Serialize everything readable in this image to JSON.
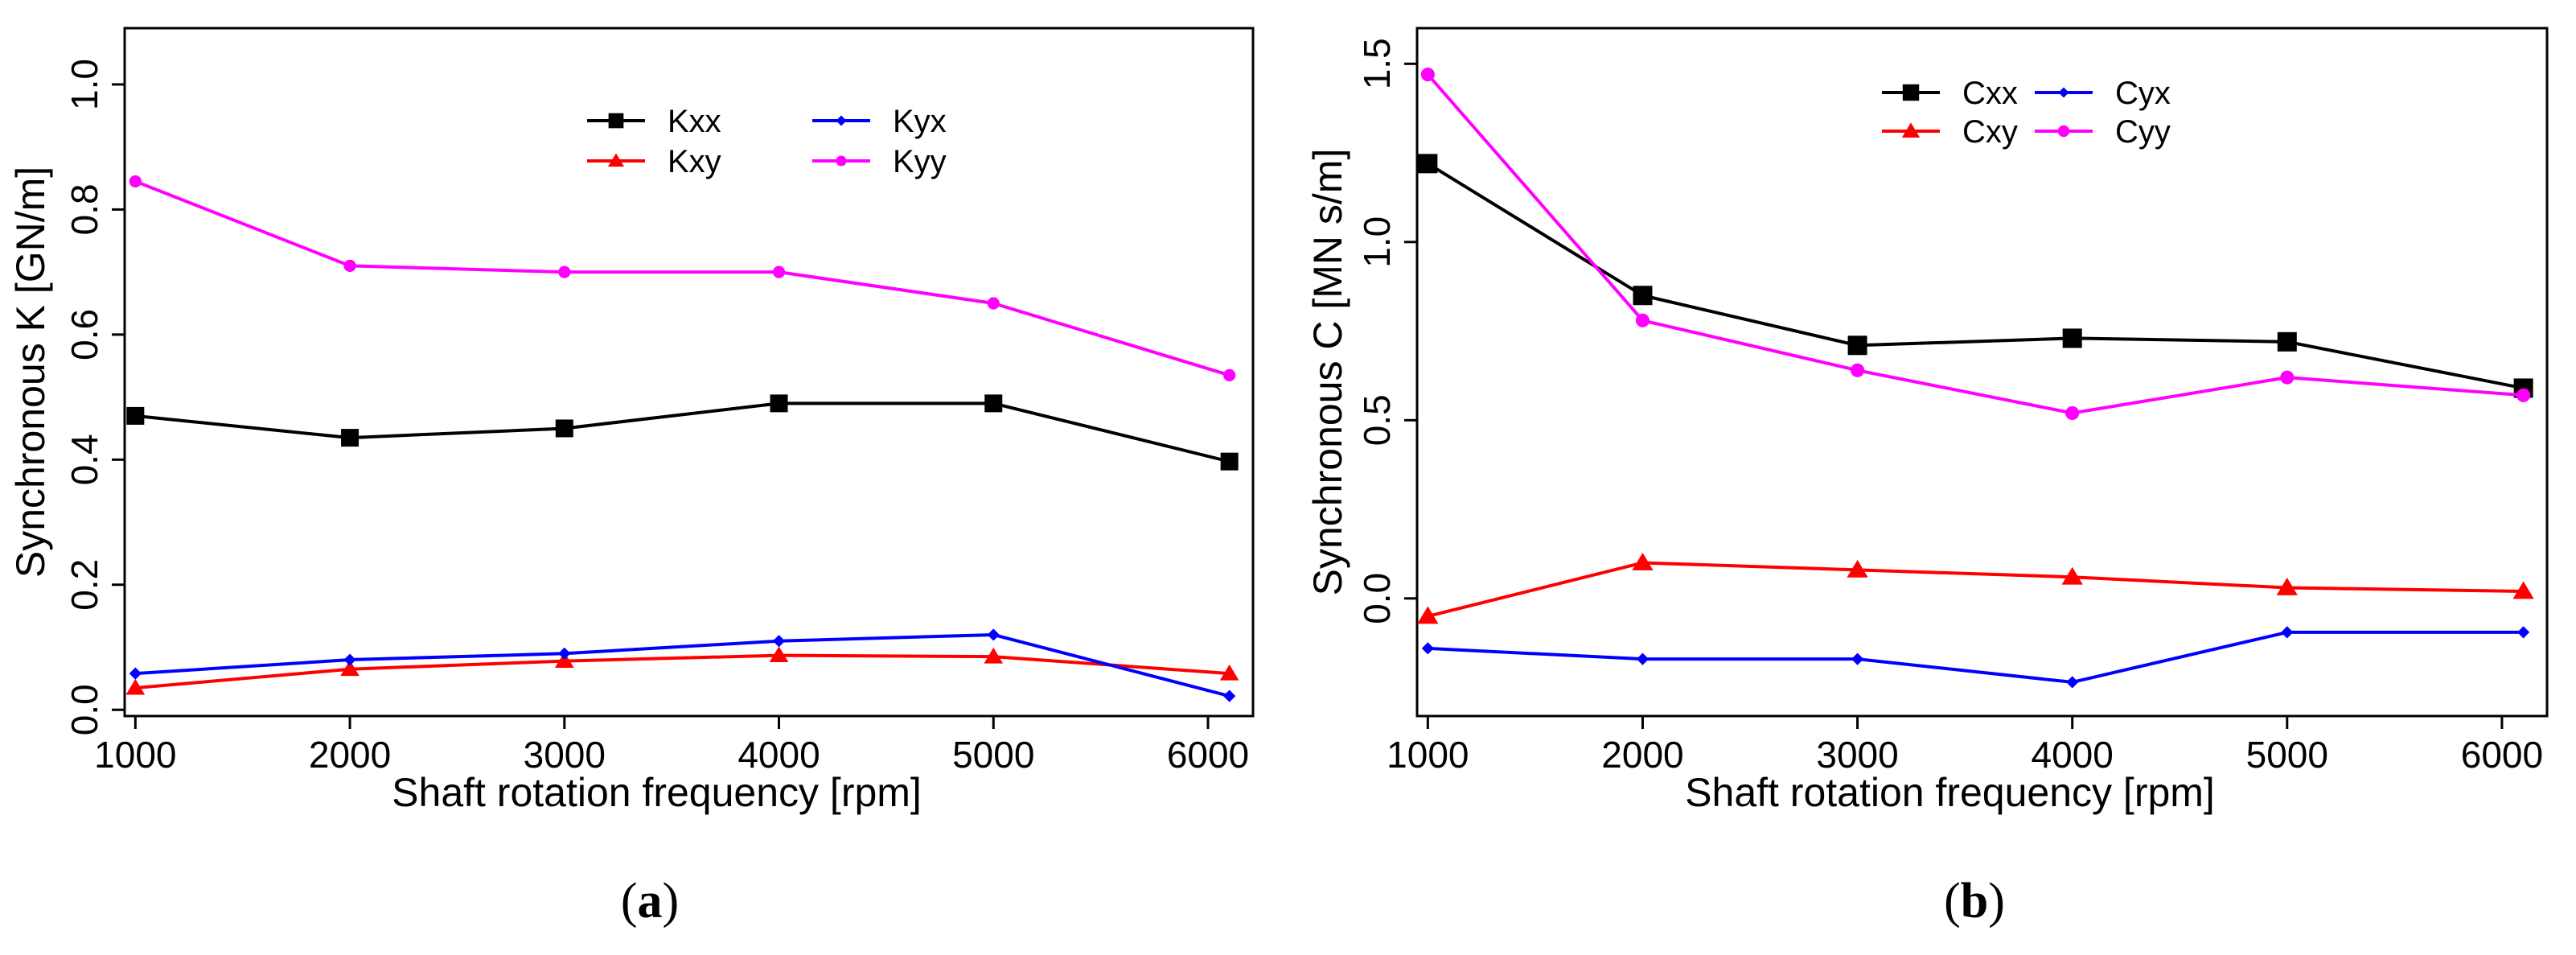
{
  "chart_data": [
    {
      "type": "line",
      "panel_label": "(a)",
      "xlabel": "Shaft rotation frequency [rpm]",
      "ylabel": "Synchronous K [GN/m]",
      "x": [
        1000,
        2000,
        3000,
        4000,
        5000,
        6100
      ],
      "xticks": [
        "1000",
        "2000",
        "3000",
        "4000",
        "5000",
        "6000"
      ],
      "xtick_values": [
        1000,
        2000,
        3000,
        4000,
        5000,
        6000
      ],
      "xlim": [
        950,
        6210
      ],
      "ylim": [
        -0.01,
        1.09
      ],
      "yticks": [
        "0.0",
        "0.2",
        "0.4",
        "0.6",
        "0.8",
        "1.0"
      ],
      "ytick_values": [
        0.0,
        0.2,
        0.4,
        0.6,
        0.8,
        1.0
      ],
      "grid": false,
      "legend_position": "top-center",
      "legend_columns": [
        [
          "Kxx",
          "Kxy"
        ],
        [
          "Kyx",
          "Kyy"
        ]
      ],
      "series": [
        {
          "name": "Kxx",
          "color": "#000000",
          "marker": "square",
          "values": [
            0.47,
            0.435,
            0.45,
            0.49,
            0.49,
            0.397
          ]
        },
        {
          "name": "Kxy",
          "color": "#ff0000",
          "marker": "triangle",
          "values": [
            0.035,
            0.065,
            0.078,
            0.087,
            0.085,
            0.058
          ]
        },
        {
          "name": "Kyx",
          "color": "#0000ff",
          "marker": "diamond",
          "values": [
            0.058,
            0.08,
            0.09,
            0.11,
            0.12,
            0.022
          ]
        },
        {
          "name": "Kyy",
          "color": "#ff00ff",
          "marker": "circle",
          "values": [
            0.845,
            0.71,
            0.7,
            0.7,
            0.65,
            0.535
          ]
        }
      ]
    },
    {
      "type": "line",
      "panel_label": "(b)",
      "xlabel": "Shaft rotation frequency [rpm]",
      "ylabel": "Synchronous C [MN s/m]",
      "x": [
        1000,
        2000,
        3000,
        4000,
        5000,
        6100
      ],
      "xticks": [
        "1000",
        "2000",
        "3000",
        "4000",
        "5000",
        "6000"
      ],
      "xtick_values": [
        1000,
        2000,
        3000,
        4000,
        5000,
        6000
      ],
      "xlim": [
        950,
        6210
      ],
      "ylim": [
        -0.33,
        1.6
      ],
      "yticks": [
        "0.0",
        "0.5",
        "1.0",
        "1.5"
      ],
      "ytick_values": [
        0.0,
        0.5,
        1.0,
        1.5
      ],
      "grid": false,
      "legend_position": "top-center",
      "legend_columns": [
        [
          "Cxx",
          "Cxy"
        ],
        [
          "Cyx",
          "Cyy"
        ]
      ],
      "series": [
        {
          "name": "Cxx",
          "color": "#000000",
          "marker": "square",
          "values": [
            1.22,
            0.85,
            0.71,
            0.73,
            0.72,
            0.59
          ]
        },
        {
          "name": "Cxy",
          "color": "#ff0000",
          "marker": "triangle",
          "values": [
            -0.05,
            0.1,
            0.08,
            0.06,
            0.03,
            0.02
          ]
        },
        {
          "name": "Cyx",
          "color": "#0000ff",
          "marker": "diamond",
          "values": [
            -0.14,
            -0.17,
            -0.17,
            -0.235,
            -0.095,
            -0.095
          ]
        },
        {
          "name": "Cyy",
          "color": "#ff00ff",
          "marker": "circle",
          "values": [
            1.47,
            0.78,
            0.64,
            0.52,
            0.62,
            0.57
          ]
        }
      ]
    }
  ]
}
